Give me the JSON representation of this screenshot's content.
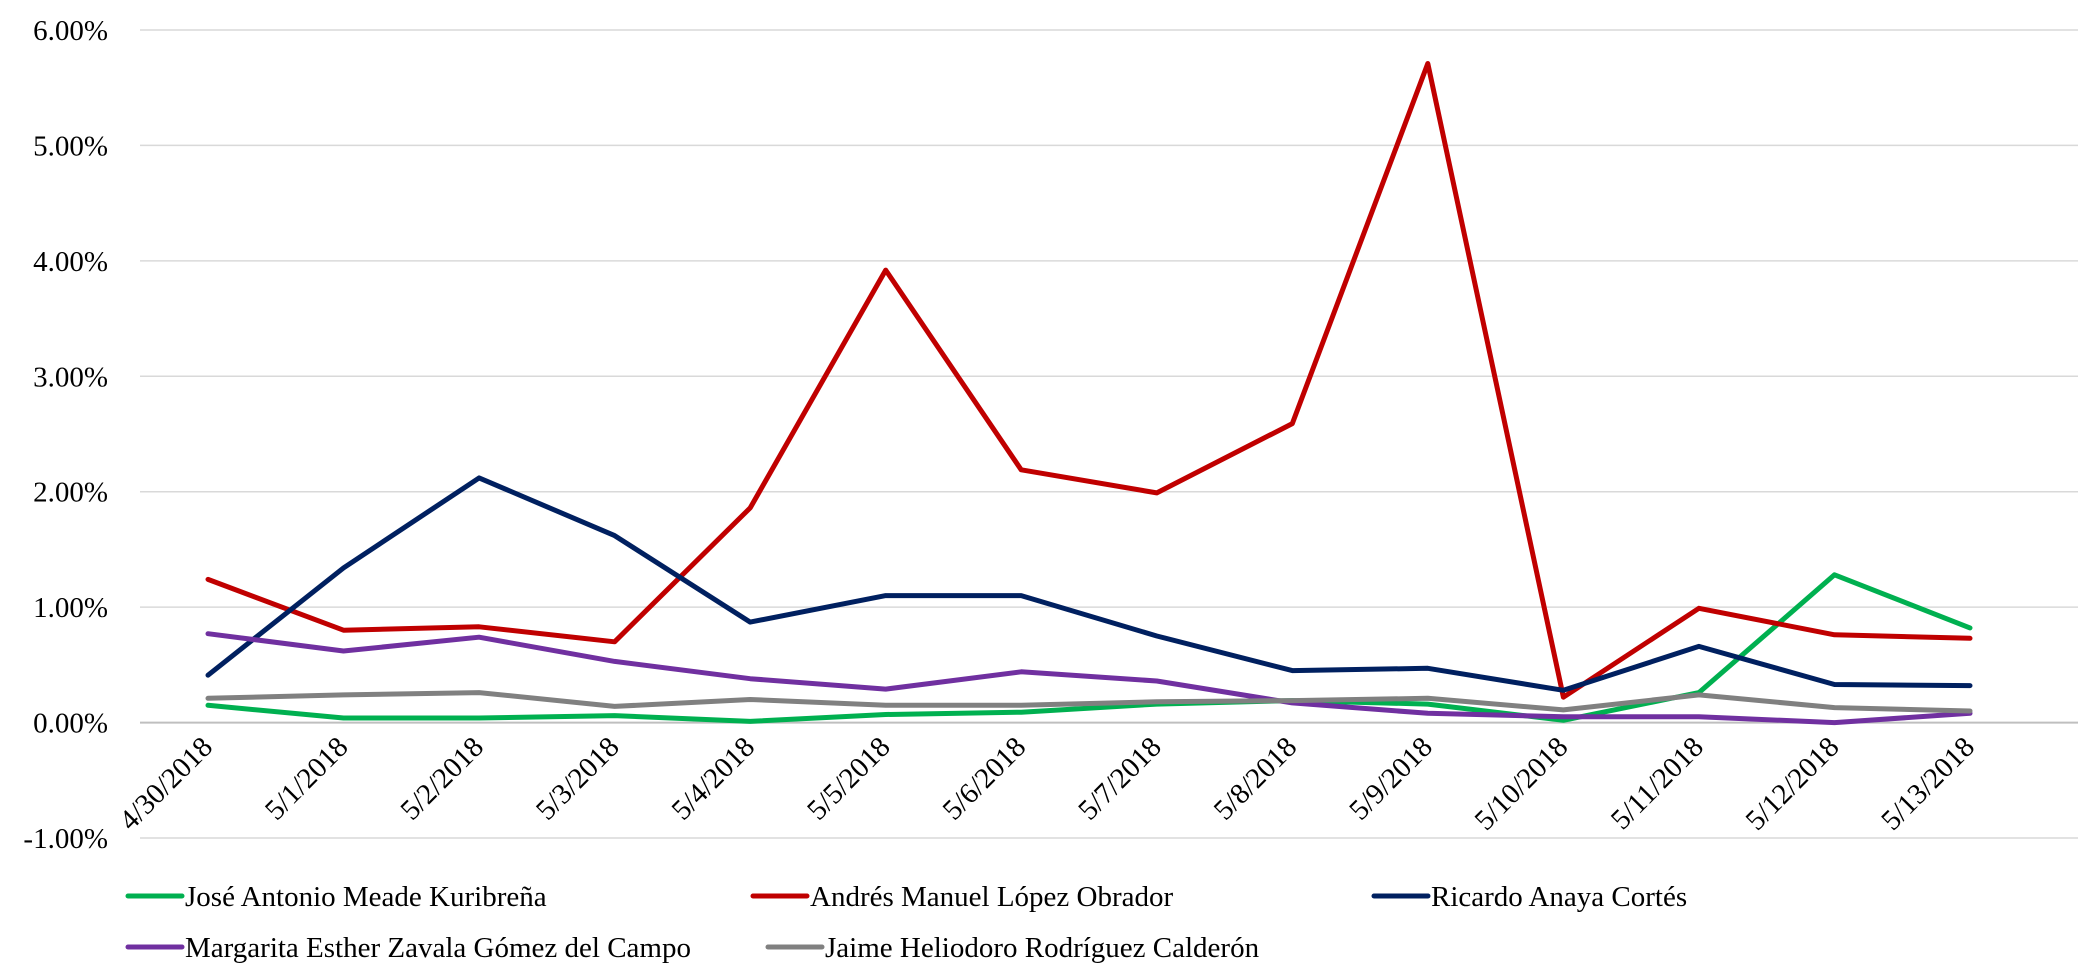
{
  "chart_data": {
    "type": "line",
    "categories": [
      "4/30/2018",
      "5/1/2018",
      "5/2/2018",
      "5/3/2018",
      "5/4/2018",
      "5/5/2018",
      "5/6/2018",
      "5/7/2018",
      "5/8/2018",
      "5/9/2018",
      "5/10/2018",
      "5/11/2018",
      "5/12/2018",
      "5/13/2018"
    ],
    "ylim": [
      -0.01,
      0.06
    ],
    "yticks": [
      -0.01,
      0,
      0.01,
      0.02,
      0.03,
      0.04,
      0.05,
      0.06
    ],
    "ytick_labels": [
      "-1.00%",
      "0.00%",
      "1.00%",
      "2.00%",
      "3.00%",
      "4.00%",
      "5.00%",
      "6.00%"
    ],
    "grid": true,
    "legend_position": "bottom",
    "series": [
      {
        "name": "José Antonio Meade Kuribreña",
        "color": "#00b050",
        "values": [
          0.0015,
          0.0004,
          0.0004,
          0.0006,
          0.0001,
          0.0007,
          0.0009,
          0.0016,
          0.0019,
          0.0016,
          0.0002,
          0.0026,
          0.0128,
          0.0082
        ]
      },
      {
        "name": "Andrés Manuel López Obrador",
        "color": "#c00000",
        "values": [
          0.0124,
          0.008,
          0.0083,
          0.007,
          0.0186,
          0.0392,
          0.0219,
          0.0199,
          0.0259,
          0.0571,
          0.0022,
          0.0099,
          0.0076,
          0.0073
        ]
      },
      {
        "name": "Ricardo Anaya Cortés",
        "color": "#002060",
        "values": [
          0.0041,
          0.0134,
          0.0212,
          0.0162,
          0.0087,
          0.011,
          0.011,
          0.0075,
          0.0045,
          0.0047,
          0.0028,
          0.0066,
          0.0033,
          0.0032
        ]
      },
      {
        "name": "Margarita Esther Zavala Gómez del Campo",
        "color": "#7030a0",
        "values": [
          0.0077,
          0.0062,
          0.0074,
          0.0053,
          0.0038,
          0.0029,
          0.0044,
          0.0036,
          0.0017,
          0.0008,
          0.0005,
          0.0005,
          0.0,
          0.0008
        ]
      },
      {
        "name": "Jaime Heliodoro Rodríguez Calderón",
        "color": "#808080",
        "values": [
          0.0021,
          0.0024,
          0.0026,
          0.0014,
          0.002,
          0.0015,
          0.0015,
          0.0018,
          0.0019,
          0.0021,
          0.0011,
          0.0024,
          0.0013,
          0.001
        ]
      }
    ]
  }
}
